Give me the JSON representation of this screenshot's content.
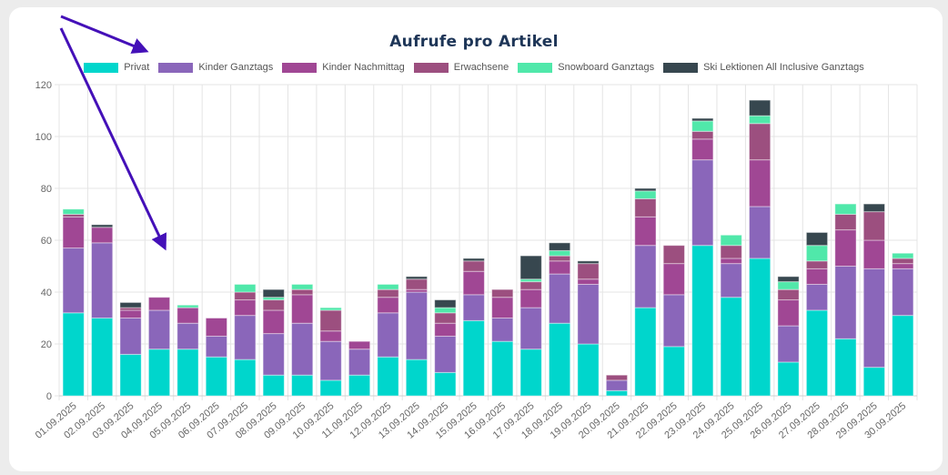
{
  "chart_data": {
    "type": "bar",
    "stacked": true,
    "title": "Aufrufe pro Artikel",
    "xlabel": "",
    "ylabel": "",
    "ylim": [
      0,
      120
    ],
    "yticks": [
      0,
      20,
      40,
      60,
      80,
      100,
      120
    ],
    "grid": true,
    "legend_position": "top",
    "categories": [
      "01.09.2025",
      "02.09.2025",
      "03.09.2025",
      "04.09.2025",
      "05.09.2025",
      "06.09.2025",
      "07.09.2025",
      "08.09.2025",
      "09.09.2025",
      "10.09.2025",
      "11.09.2025",
      "12.09.2025",
      "13.09.2025",
      "14.09.2025",
      "15.09.2025",
      "16.09.2025",
      "17.09.2025",
      "18.09.2025",
      "19.09.2025",
      "20.09.2025",
      "21.09.2025",
      "22.09.2025",
      "23.09.2025",
      "24.09.2025",
      "25.09.2025",
      "26.09.2025",
      "27.09.2025",
      "28.09.2025",
      "29.09.2025",
      "30.09.2025"
    ],
    "series": [
      {
        "name": "Privat",
        "color": "#00d6cc",
        "values": [
          32,
          30,
          16,
          18,
          18,
          15,
          14,
          8,
          8,
          6,
          8,
          15,
          14,
          9,
          29,
          21,
          18,
          28,
          20,
          2,
          34,
          19,
          58,
          38,
          53,
          13,
          33,
          22,
          11,
          31
        ]
      },
      {
        "name": "Kinder Ganztags",
        "color": "#8a66ba",
        "values": [
          25,
          29,
          14,
          15,
          10,
          8,
          17,
          16,
          20,
          15,
          10,
          17,
          26,
          14,
          10,
          9,
          16,
          19,
          23,
          4,
          24,
          20,
          33,
          13,
          20,
          14,
          10,
          28,
          38,
          18
        ]
      },
      {
        "name": "Kinder Nachmittag",
        "color": "#a04794",
        "values": [
          12,
          6,
          3,
          5,
          6,
          7,
          6,
          9,
          11,
          4,
          3,
          6,
          1,
          5,
          9,
          8,
          7,
          5,
          2,
          0,
          11,
          12,
          8,
          2,
          18,
          10,
          6,
          14,
          11,
          2
        ]
      },
      {
        "name": "Erwachsene",
        "color": "#9c4f7f",
        "values": [
          1,
          0,
          1,
          0,
          0,
          0,
          3,
          4,
          2,
          8,
          0,
          3,
          4,
          4,
          4,
          3,
          3,
          2,
          6,
          2,
          7,
          7,
          3,
          5,
          14,
          4,
          3,
          6,
          11,
          2
        ]
      },
      {
        "name": "Snowboard Ganztags",
        "color": "#50e8aa",
        "values": [
          2,
          0,
          0,
          0,
          1,
          0,
          3,
          1,
          2,
          1,
          0,
          2,
          0,
          2,
          0,
          0,
          1,
          2,
          0,
          0,
          3,
          0,
          4,
          4,
          3,
          3,
          6,
          4,
          0,
          2
        ]
      },
      {
        "name": "Ski Lektionen All Inclusive Ganztags",
        "color": "#37474f",
        "values": [
          0,
          1,
          2,
          0,
          0,
          0,
          0,
          3,
          0,
          0,
          0,
          0,
          1,
          3,
          1,
          0,
          9,
          3,
          1,
          0,
          1,
          0,
          1,
          0,
          6,
          2,
          5,
          0,
          3,
          0
        ]
      }
    ]
  }
}
